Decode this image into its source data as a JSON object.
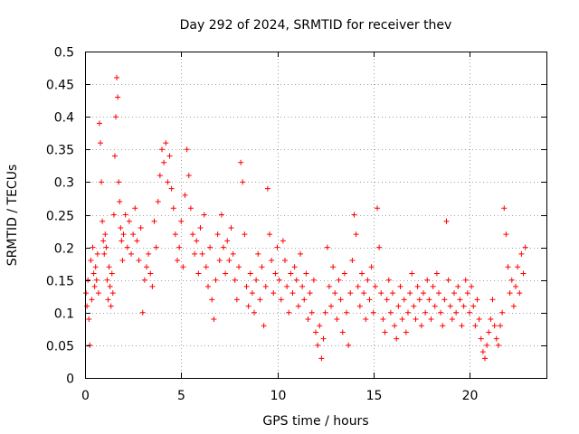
{
  "chart_data": {
    "type": "scatter",
    "title": "Day 292 of 2024, SRMTID for receiver thev",
    "xlabel": "GPS time / hours",
    "ylabel": "SRMTID / TECUs",
    "xlim": [
      0,
      24
    ],
    "ylim": [
      0,
      0.5
    ],
    "xticks": [
      0,
      5,
      10,
      15,
      20
    ],
    "yticks": [
      0,
      0.05,
      0.1,
      0.15,
      0.2,
      0.25,
      0.3,
      0.35,
      0.4,
      0.45,
      0.5
    ],
    "xtick_labels": [
      "0",
      "5",
      "10",
      "15",
      "20"
    ],
    "ytick_labels": [
      "0",
      "0.05",
      "0.1",
      "0.15",
      "0.2",
      "0.25",
      "0.3",
      "0.35",
      "0.4",
      "0.45",
      "0.5"
    ],
    "grid": true,
    "marker": "+",
    "color": "#ff0000",
    "series": [
      {
        "name": "SRMTID",
        "points": [
          [
            0.05,
            0.13
          ],
          [
            0.1,
            0.11
          ],
          [
            0.15,
            0.15
          ],
          [
            0.2,
            0.09
          ],
          [
            0.25,
            0.05
          ],
          [
            0.3,
            0.18
          ],
          [
            0.35,
            0.12
          ],
          [
            0.4,
            0.2
          ],
          [
            0.45,
            0.16
          ],
          [
            0.5,
            0.14
          ],
          [
            0.55,
            0.17
          ],
          [
            0.6,
            0.15
          ],
          [
            0.65,
            0.19
          ],
          [
            0.7,
            0.13
          ],
          [
            0.75,
            0.39
          ],
          [
            0.8,
            0.36
          ],
          [
            0.85,
            0.3
          ],
          [
            0.9,
            0.24
          ],
          [
            0.95,
            0.21
          ],
          [
            1.0,
            0.19
          ],
          [
            1.05,
            0.22
          ],
          [
            1.1,
            0.2
          ],
          [
            1.15,
            0.15
          ],
          [
            1.2,
            0.12
          ],
          [
            1.25,
            0.17
          ],
          [
            1.3,
            0.14
          ],
          [
            1.35,
            0.11
          ],
          [
            1.4,
            0.16
          ],
          [
            1.45,
            0.13
          ],
          [
            1.5,
            0.25
          ],
          [
            1.55,
            0.34
          ],
          [
            1.6,
            0.4
          ],
          [
            1.65,
            0.46
          ],
          [
            1.7,
            0.43
          ],
          [
            1.75,
            0.3
          ],
          [
            1.8,
            0.27
          ],
          [
            1.85,
            0.23
          ],
          [
            1.9,
            0.21
          ],
          [
            1.95,
            0.18
          ],
          [
            2.0,
            0.22
          ],
          [
            2.1,
            0.25
          ],
          [
            2.2,
            0.2
          ],
          [
            2.3,
            0.24
          ],
          [
            2.4,
            0.19
          ],
          [
            2.5,
            0.22
          ],
          [
            2.6,
            0.26
          ],
          [
            2.7,
            0.21
          ],
          [
            2.8,
            0.18
          ],
          [
            2.9,
            0.23
          ],
          [
            3.0,
            0.1
          ],
          [
            3.1,
            0.15
          ],
          [
            3.2,
            0.17
          ],
          [
            3.3,
            0.19
          ],
          [
            3.4,
            0.16
          ],
          [
            3.5,
            0.14
          ],
          [
            3.6,
            0.24
          ],
          [
            3.7,
            0.2
          ],
          [
            3.8,
            0.27
          ],
          [
            3.9,
            0.31
          ],
          [
            4.0,
            0.35
          ],
          [
            4.1,
            0.33
          ],
          [
            4.2,
            0.36
          ],
          [
            4.3,
            0.3
          ],
          [
            4.4,
            0.34
          ],
          [
            4.5,
            0.29
          ],
          [
            4.6,
            0.26
          ],
          [
            4.7,
            0.22
          ],
          [
            4.8,
            0.18
          ],
          [
            4.9,
            0.2
          ],
          [
            5.0,
            0.24
          ],
          [
            5.1,
            0.17
          ],
          [
            5.2,
            0.28
          ],
          [
            5.3,
            0.35
          ],
          [
            5.4,
            0.31
          ],
          [
            5.5,
            0.26
          ],
          [
            5.6,
            0.22
          ],
          [
            5.7,
            0.19
          ],
          [
            5.8,
            0.21
          ],
          [
            5.9,
            0.16
          ],
          [
            6.0,
            0.23
          ],
          [
            6.1,
            0.19
          ],
          [
            6.2,
            0.25
          ],
          [
            6.3,
            0.17
          ],
          [
            6.4,
            0.14
          ],
          [
            6.5,
            0.2
          ],
          [
            6.6,
            0.12
          ],
          [
            6.7,
            0.09
          ],
          [
            6.8,
            0.15
          ],
          [
            6.9,
            0.22
          ],
          [
            7.0,
            0.18
          ],
          [
            7.1,
            0.25
          ],
          [
            7.2,
            0.2
          ],
          [
            7.3,
            0.16
          ],
          [
            7.4,
            0.21
          ],
          [
            7.5,
            0.18
          ],
          [
            7.6,
            0.23
          ],
          [
            7.7,
            0.19
          ],
          [
            7.8,
            0.15
          ],
          [
            7.9,
            0.12
          ],
          [
            8.0,
            0.17
          ],
          [
            8.1,
            0.33
          ],
          [
            8.2,
            0.3
          ],
          [
            8.3,
            0.22
          ],
          [
            8.4,
            0.14
          ],
          [
            8.5,
            0.11
          ],
          [
            8.6,
            0.16
          ],
          [
            8.7,
            0.13
          ],
          [
            8.8,
            0.1
          ],
          [
            8.9,
            0.15
          ],
          [
            9.0,
            0.19
          ],
          [
            9.1,
            0.12
          ],
          [
            9.2,
            0.17
          ],
          [
            9.3,
            0.08
          ],
          [
            9.4,
            0.14
          ],
          [
            9.5,
            0.29
          ],
          [
            9.6,
            0.22
          ],
          [
            9.7,
            0.18
          ],
          [
            9.8,
            0.13
          ],
          [
            9.9,
            0.16
          ],
          [
            10.0,
            0.2
          ],
          [
            10.1,
            0.15
          ],
          [
            10.2,
            0.12
          ],
          [
            10.3,
            0.21
          ],
          [
            10.4,
            0.18
          ],
          [
            10.5,
            0.14
          ],
          [
            10.6,
            0.1
          ],
          [
            10.7,
            0.16
          ],
          [
            10.8,
            0.13
          ],
          [
            10.9,
            0.17
          ],
          [
            11.0,
            0.15
          ],
          [
            11.1,
            0.11
          ],
          [
            11.2,
            0.19
          ],
          [
            11.3,
            0.14
          ],
          [
            11.4,
            0.12
          ],
          [
            11.5,
            0.16
          ],
          [
            11.6,
            0.09
          ],
          [
            11.7,
            0.13
          ],
          [
            11.8,
            0.1
          ],
          [
            11.9,
            0.15
          ],
          [
            12.0,
            0.07
          ],
          [
            12.1,
            0.05
          ],
          [
            12.2,
            0.08
          ],
          [
            12.3,
            0.03
          ],
          [
            12.4,
            0.06
          ],
          [
            12.5,
            0.1
          ],
          [
            12.6,
            0.2
          ],
          [
            12.7,
            0.14
          ],
          [
            12.8,
            0.11
          ],
          [
            12.9,
            0.17
          ],
          [
            13.0,
            0.13
          ],
          [
            13.1,
            0.09
          ],
          [
            13.2,
            0.15
          ],
          [
            13.3,
            0.12
          ],
          [
            13.4,
            0.07
          ],
          [
            13.5,
            0.16
          ],
          [
            13.6,
            0.1
          ],
          [
            13.7,
            0.05
          ],
          [
            13.8,
            0.13
          ],
          [
            13.9,
            0.18
          ],
          [
            14.0,
            0.25
          ],
          [
            14.1,
            0.22
          ],
          [
            14.2,
            0.14
          ],
          [
            14.3,
            0.11
          ],
          [
            14.4,
            0.16
          ],
          [
            14.5,
            0.13
          ],
          [
            14.6,
            0.09
          ],
          [
            14.7,
            0.15
          ],
          [
            14.8,
            0.12
          ],
          [
            14.9,
            0.17
          ],
          [
            15.0,
            0.1
          ],
          [
            15.1,
            0.14
          ],
          [
            15.2,
            0.26
          ],
          [
            15.3,
            0.2
          ],
          [
            15.4,
            0.13
          ],
          [
            15.5,
            0.09
          ],
          [
            15.6,
            0.07
          ],
          [
            15.7,
            0.12
          ],
          [
            15.8,
            0.15
          ],
          [
            15.9,
            0.1
          ],
          [
            16.0,
            0.13
          ],
          [
            16.1,
            0.08
          ],
          [
            16.2,
            0.06
          ],
          [
            16.3,
            0.11
          ],
          [
            16.4,
            0.14
          ],
          [
            16.5,
            0.09
          ],
          [
            16.6,
            0.12
          ],
          [
            16.7,
            0.07
          ],
          [
            16.8,
            0.1
          ],
          [
            16.9,
            0.13
          ],
          [
            17.0,
            0.16
          ],
          [
            17.1,
            0.11
          ],
          [
            17.2,
            0.09
          ],
          [
            17.3,
            0.14
          ],
          [
            17.4,
            0.12
          ],
          [
            17.5,
            0.08
          ],
          [
            17.6,
            0.13
          ],
          [
            17.7,
            0.1
          ],
          [
            17.8,
            0.15
          ],
          [
            17.9,
            0.12
          ],
          [
            18.0,
            0.09
          ],
          [
            18.1,
            0.14
          ],
          [
            18.2,
            0.11
          ],
          [
            18.3,
            0.16
          ],
          [
            18.4,
            0.13
          ],
          [
            18.5,
            0.1
          ],
          [
            18.6,
            0.08
          ],
          [
            18.7,
            0.12
          ],
          [
            18.8,
            0.24
          ],
          [
            18.9,
            0.15
          ],
          [
            19.0,
            0.11
          ],
          [
            19.1,
            0.09
          ],
          [
            19.2,
            0.13
          ],
          [
            19.3,
            0.1
          ],
          [
            19.4,
            0.14
          ],
          [
            19.5,
            0.12
          ],
          [
            19.6,
            0.08
          ],
          [
            19.7,
            0.11
          ],
          [
            19.8,
            0.15
          ],
          [
            19.9,
            0.13
          ],
          [
            20.0,
            0.1
          ],
          [
            20.1,
            0.14
          ],
          [
            20.2,
            0.11
          ],
          [
            20.3,
            0.08
          ],
          [
            20.4,
            0.12
          ],
          [
            20.5,
            0.09
          ],
          [
            20.6,
            0.06
          ],
          [
            20.7,
            0.04
          ],
          [
            20.8,
            0.03
          ],
          [
            20.9,
            0.05
          ],
          [
            21.0,
            0.07
          ],
          [
            21.1,
            0.09
          ],
          [
            21.2,
            0.12
          ],
          [
            21.3,
            0.08
          ],
          [
            21.4,
            0.06
          ],
          [
            21.5,
            0.05
          ],
          [
            21.6,
            0.08
          ],
          [
            21.7,
            0.1
          ],
          [
            21.8,
            0.26
          ],
          [
            21.9,
            0.22
          ],
          [
            22.0,
            0.17
          ],
          [
            22.1,
            0.13
          ],
          [
            22.2,
            0.15
          ],
          [
            22.3,
            0.11
          ],
          [
            22.4,
            0.14
          ],
          [
            22.5,
            0.17
          ],
          [
            22.6,
            0.13
          ],
          [
            22.7,
            0.19
          ],
          [
            22.8,
            0.16
          ],
          [
            22.9,
            0.2
          ]
        ]
      }
    ]
  }
}
